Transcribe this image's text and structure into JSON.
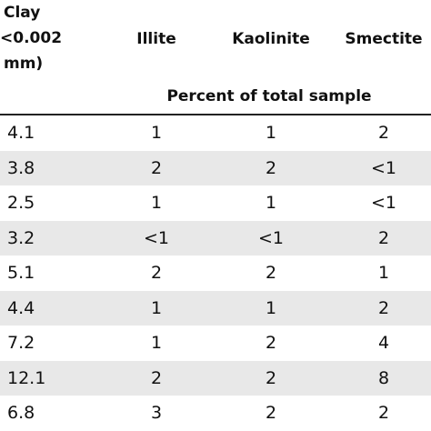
{
  "header": {
    "clay": [
      "Clay",
      "<0.002",
      "mm)"
    ],
    "columns": [
      "Illite",
      "Kaolinite",
      "Smectite"
    ],
    "subheader": "Percent of total sample"
  },
  "table": {
    "rows": [
      [
        "4.1",
        "1",
        "1",
        "2"
      ],
      [
        "3.8",
        "2",
        "2",
        "<1"
      ],
      [
        "2.5",
        "1",
        "1",
        "<1"
      ],
      [
        "3.2",
        "<1",
        "<1",
        "2"
      ],
      [
        "5.1",
        "2",
        "2",
        "1"
      ],
      [
        "4.4",
        "1",
        "1",
        "2"
      ],
      [
        "7.2",
        "1",
        "2",
        "4"
      ],
      [
        "12.1",
        "2",
        "2",
        "8"
      ],
      [
        "6.8",
        "3",
        "2",
        "2"
      ]
    ]
  }
}
